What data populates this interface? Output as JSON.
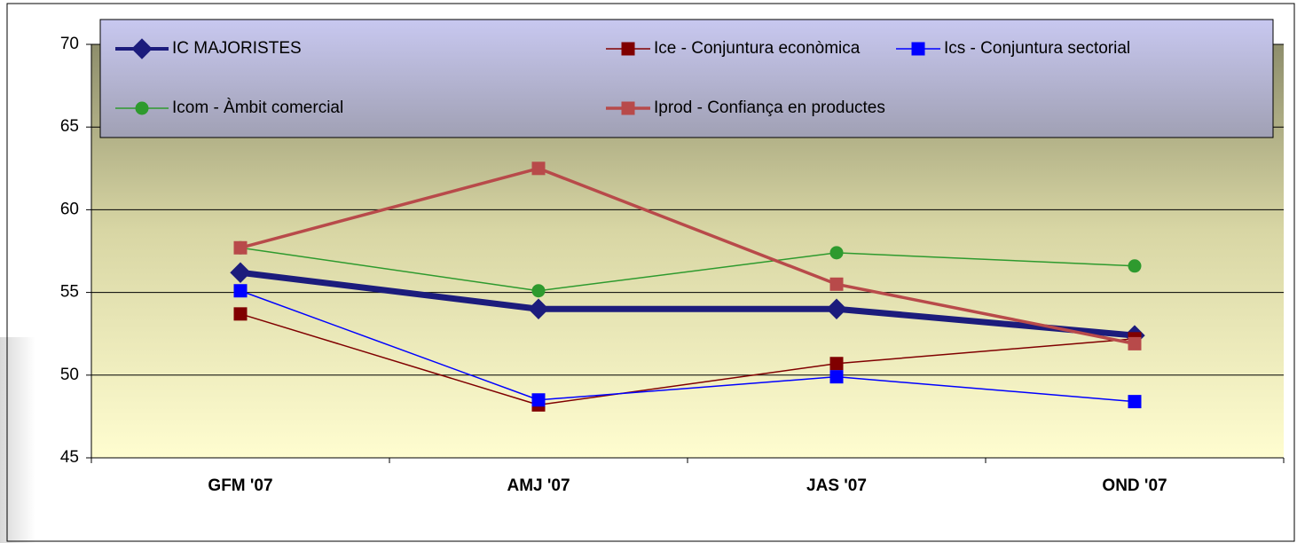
{
  "chart_data": {
    "type": "line",
    "categories": [
      "GFM '07",
      "AMJ '07",
      "JAS '07",
      "OND '07"
    ],
    "series": [
      {
        "name": "IC MAJORISTES",
        "color": "#1c1c7c",
        "marker": "diamond",
        "line_width": 7,
        "values": [
          56.2,
          54.0,
          54.0,
          52.4
        ]
      },
      {
        "name": "Ice - Conjuntura econòmica",
        "color": "#800000",
        "marker": "square",
        "line_width": 1.5,
        "values": [
          53.7,
          48.2,
          50.7,
          52.2
        ]
      },
      {
        "name": "Ics - Conjuntura sectorial",
        "color": "#0000ff",
        "marker": "square",
        "line_width": 1.5,
        "values": [
          55.1,
          48.5,
          49.9,
          48.4
        ]
      },
      {
        "name": "Icom - Àmbit comercial",
        "color": "#2e9a2e",
        "marker": "circle",
        "line_width": 1.5,
        "values": [
          57.7,
          55.1,
          57.4,
          56.6
        ]
      },
      {
        "name": "Iprod - Confiança en productes",
        "color": "#b84a4a",
        "marker": "square",
        "line_width": 3.5,
        "values": [
          57.7,
          62.5,
          55.5,
          51.9
        ]
      }
    ],
    "ylim": [
      45,
      70
    ],
    "yticks": [
      45,
      50,
      55,
      60,
      65,
      70
    ],
    "grid": true,
    "legend": "top"
  }
}
